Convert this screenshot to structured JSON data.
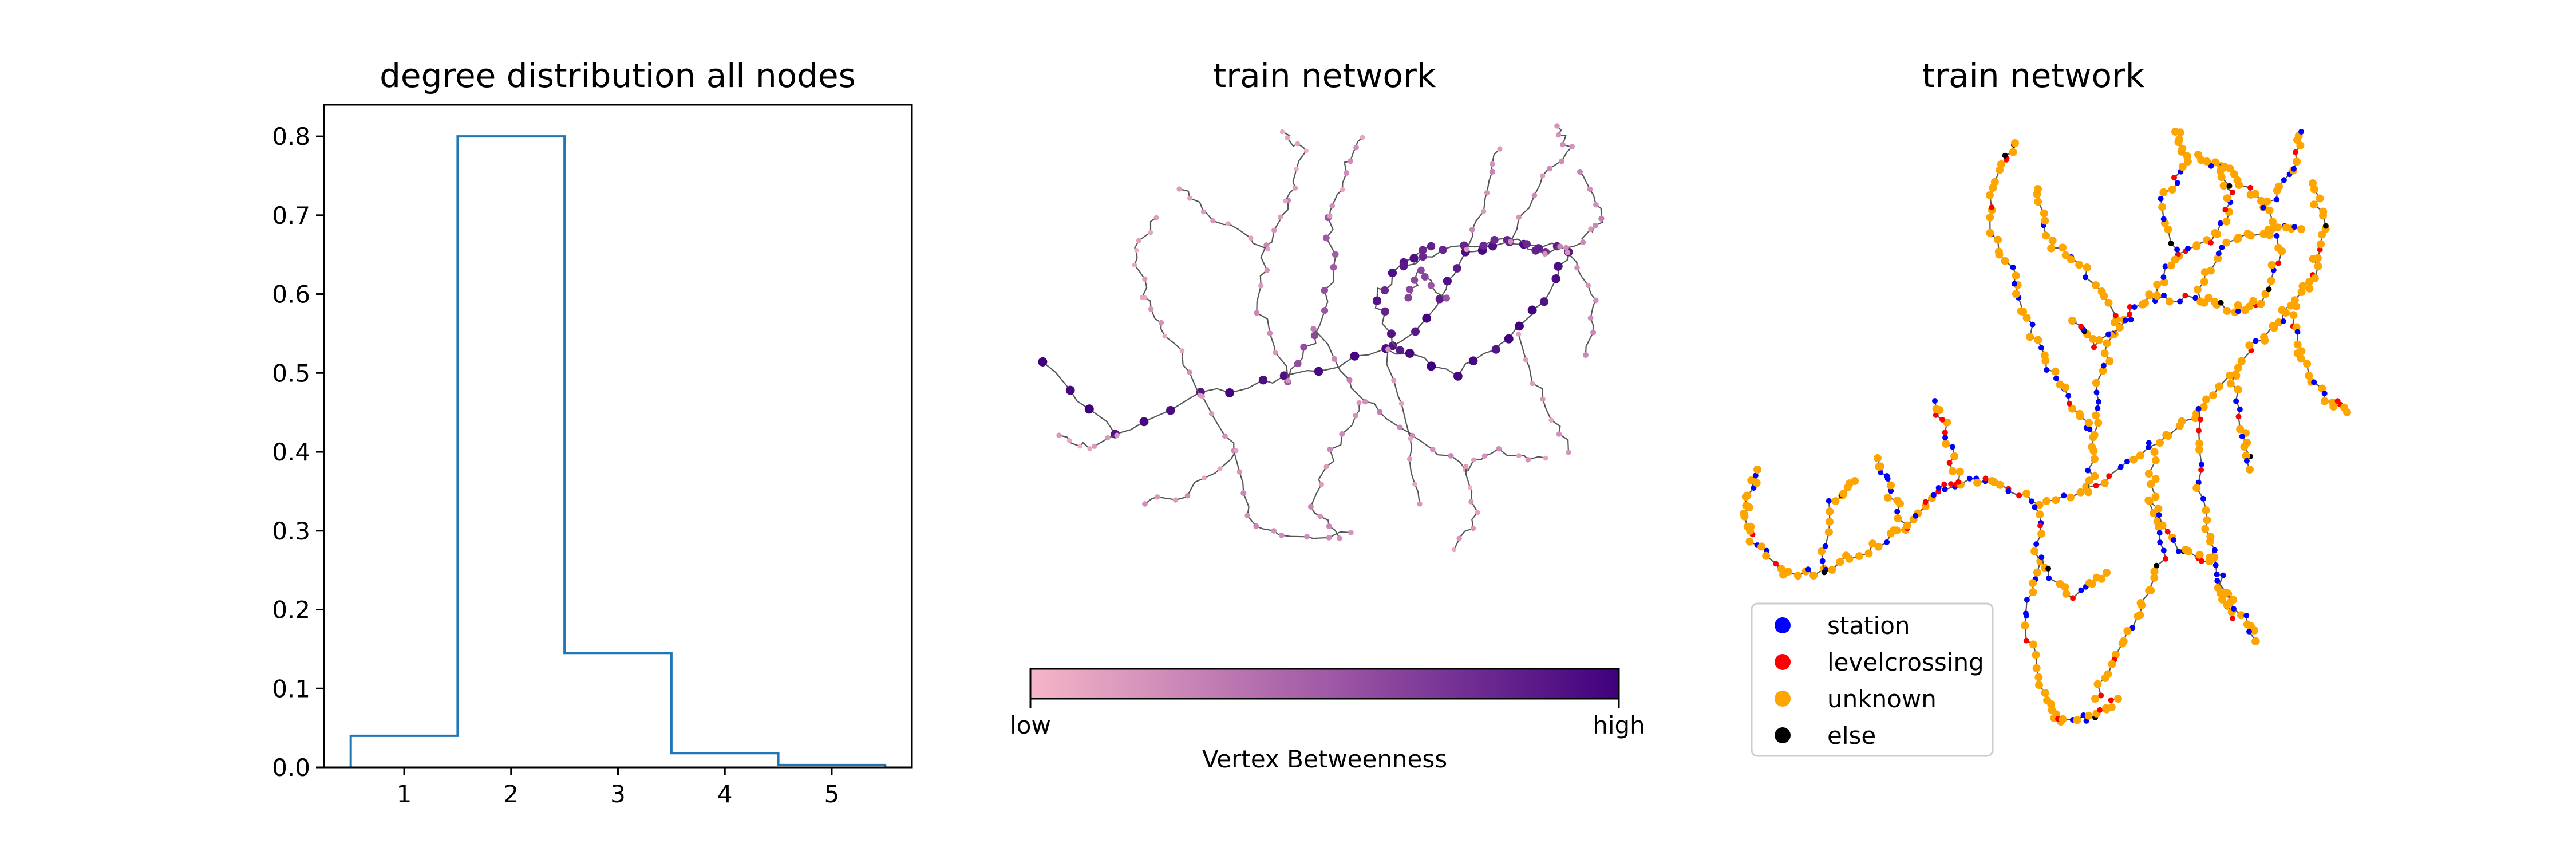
{
  "colors": {
    "histogram_line": "#1f77b4",
    "edge": "#555555",
    "cmap_low": "#f7b6c8",
    "cmap_mid": "#a05aa6",
    "cmap_high": "#3f007d"
  },
  "chart_data": [
    {
      "type": "bar",
      "style": "step-histogram",
      "title": "degree distribution  all nodes",
      "categories": [
        "1",
        "2",
        "3",
        "4",
        "5"
      ],
      "x": [
        1,
        2,
        3,
        4,
        5
      ],
      "values": [
        0.04,
        0.8,
        0.145,
        0.018,
        0.003
      ],
      "xticks": [
        "1",
        "2",
        "3",
        "4",
        "5"
      ],
      "yticks": [
        "0.0",
        "0.1",
        "0.2",
        "0.3",
        "0.4",
        "0.5",
        "0.6",
        "0.7",
        "0.8"
      ],
      "xlim": [
        0.25,
        5.75
      ],
      "ylim": [
        0,
        0.84
      ],
      "xlabel": "",
      "ylabel": ""
    },
    {
      "type": "other",
      "kind": "network-graph",
      "title": "train network",
      "node_color": "Vertex Betweenness",
      "colorbar": {
        "label": "Vertex Betweenness",
        "low": "low",
        "high": "high"
      }
    },
    {
      "type": "other",
      "kind": "network-graph",
      "title": "train network",
      "legend": {
        "position": "lower-left",
        "entries": [
          {
            "label": "station",
            "color": "#0000ff"
          },
          {
            "label": "levelcrossing",
            "color": "#ff0000"
          },
          {
            "label": "unknown",
            "color": "#ffa500"
          },
          {
            "label": "else",
            "color": "#000000"
          }
        ]
      }
    }
  ]
}
